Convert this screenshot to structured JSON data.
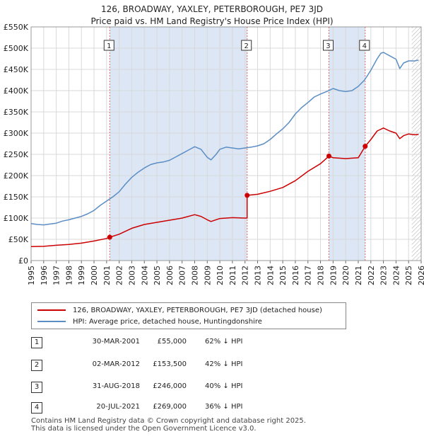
{
  "header": {
    "title_line1": "126, BROADWAY, YAXLEY, PETERBOROUGH, PE7 3JD",
    "title_line2": "Price paid vs. HM Land Registry's House Price Index (HPI)"
  },
  "legend": {
    "property_label": "126, BROADWAY, YAXLEY, PETERBOROUGH, PE7 3JD (detached house)",
    "hpi_label": "HPI: Average price, detached house, Huntingdonshire"
  },
  "transactions": [
    {
      "num": "1",
      "date": "30-MAR-2001",
      "price": "£55,000",
      "hpi": "62% ↓ HPI"
    },
    {
      "num": "2",
      "date": "02-MAR-2012",
      "price": "£153,500",
      "hpi": "42% ↓ HPI"
    },
    {
      "num": "3",
      "date": "31-AUG-2018",
      "price": "£246,000",
      "hpi": "40% ↓ HPI"
    },
    {
      "num": "4",
      "date": "20-JUL-2021",
      "price": "£269,000",
      "hpi": "36% ↓ HPI"
    }
  ],
  "footer": {
    "line1": "Contains HM Land Registry data © Crown copyright and database right 2025.",
    "line2": "This data is licensed under the Open Government Licence v3.0."
  },
  "colors": {
    "property": "#cc0000",
    "hpi": "#5b8ec4",
    "shade": "#dce6f5",
    "marker_line": "#dd6666",
    "grid": "#d9d9d9",
    "hatch": "#aaaaaa"
  },
  "chart_data": {
    "type": "line",
    "xlabel": "",
    "ylabel": "",
    "xlim": [
      1995,
      2026
    ],
    "ylim": [
      0,
      550000
    ],
    "x_ticks": [
      1995,
      1996,
      1997,
      1998,
      1999,
      2000,
      2001,
      2002,
      2003,
      2004,
      2005,
      2006,
      2007,
      2008,
      2009,
      2010,
      2011,
      2012,
      2013,
      2014,
      2015,
      2016,
      2017,
      2018,
      2019,
      2020,
      2021,
      2022,
      2023,
      2024,
      2025,
      2026
    ],
    "y_ticks": [
      {
        "value": 0,
        "label": "£0"
      },
      {
        "value": 50000,
        "label": "£50K"
      },
      {
        "value": 100000,
        "label": "£100K"
      },
      {
        "value": 150000,
        "label": "£150K"
      },
      {
        "value": 200000,
        "label": "£200K"
      },
      {
        "value": 250000,
        "label": "£250K"
      },
      {
        "value": 300000,
        "label": "£300K"
      },
      {
        "value": 350000,
        "label": "£350K"
      },
      {
        "value": 400000,
        "label": "£400K"
      },
      {
        "value": 450000,
        "label": "£450K"
      },
      {
        "value": 500000,
        "label": "£500K"
      },
      {
        "value": 550000,
        "label": "£550K"
      }
    ],
    "grid": true,
    "forecast_from": 2025.25,
    "shaded_ranges": [
      [
        2001.25,
        2012.17
      ],
      [
        2018.67,
        2021.55
      ]
    ],
    "sales": [
      {
        "label": "1",
        "x": 2001.25,
        "y": 55000
      },
      {
        "label": "2",
        "x": 2012.17,
        "y": 153500
      },
      {
        "label": "3",
        "x": 2018.67,
        "y": 246000
      },
      {
        "label": "4",
        "x": 2021.55,
        "y": 269000
      }
    ],
    "series": [
      {
        "name": "HPI: Average price, detached house, Huntingdonshire",
        "color": "#5b8ec4",
        "points": [
          [
            1995.0,
            87000
          ],
          [
            1995.5,
            85000
          ],
          [
            1996.0,
            84000
          ],
          [
            1996.5,
            86000
          ],
          [
            1997.0,
            88000
          ],
          [
            1997.5,
            93000
          ],
          [
            1998.0,
            96000
          ],
          [
            1998.5,
            100000
          ],
          [
            1999.0,
            104000
          ],
          [
            1999.5,
            110000
          ],
          [
            2000.0,
            118000
          ],
          [
            2000.5,
            130000
          ],
          [
            2001.0,
            140000
          ],
          [
            2001.5,
            150000
          ],
          [
            2002.0,
            162000
          ],
          [
            2002.5,
            180000
          ],
          [
            2003.0,
            196000
          ],
          [
            2003.5,
            208000
          ],
          [
            2004.0,
            218000
          ],
          [
            2004.5,
            226000
          ],
          [
            2005.0,
            230000
          ],
          [
            2005.5,
            232000
          ],
          [
            2006.0,
            236000
          ],
          [
            2006.5,
            244000
          ],
          [
            2007.0,
            252000
          ],
          [
            2007.5,
            260000
          ],
          [
            2008.0,
            268000
          ],
          [
            2008.5,
            262000
          ],
          [
            2009.0,
            243000
          ],
          [
            2009.3,
            237000
          ],
          [
            2009.7,
            250000
          ],
          [
            2010.0,
            262000
          ],
          [
            2010.5,
            267000
          ],
          [
            2011.0,
            265000
          ],
          [
            2011.5,
            263000
          ],
          [
            2012.0,
            265000
          ],
          [
            2012.5,
            267000
          ],
          [
            2013.0,
            270000
          ],
          [
            2013.5,
            275000
          ],
          [
            2014.0,
            285000
          ],
          [
            2014.5,
            298000
          ],
          [
            2015.0,
            310000
          ],
          [
            2015.5,
            325000
          ],
          [
            2016.0,
            345000
          ],
          [
            2016.5,
            360000
          ],
          [
            2017.0,
            372000
          ],
          [
            2017.5,
            385000
          ],
          [
            2018.0,
            392000
          ],
          [
            2018.5,
            398000
          ],
          [
            2019.0,
            405000
          ],
          [
            2019.5,
            400000
          ],
          [
            2020.0,
            398000
          ],
          [
            2020.5,
            400000
          ],
          [
            2021.0,
            410000
          ],
          [
            2021.5,
            425000
          ],
          [
            2022.0,
            448000
          ],
          [
            2022.5,
            475000
          ],
          [
            2022.8,
            488000
          ],
          [
            2023.0,
            490000
          ],
          [
            2023.5,
            482000
          ],
          [
            2024.0,
            474000
          ],
          [
            2024.3,
            452000
          ],
          [
            2024.6,
            465000
          ],
          [
            2025.0,
            470000
          ],
          [
            2025.5,
            470000
          ],
          [
            2025.8,
            472000
          ]
        ]
      },
      {
        "name": "126, BROADWAY, YAXLEY, PETERBOROUGH, PE7 3JD (detached house)",
        "color": "#cc0000",
        "points": [
          [
            1995.0,
            33000
          ],
          [
            1996.0,
            33500
          ],
          [
            1997.0,
            36000
          ],
          [
            1998.0,
            38000
          ],
          [
            1999.0,
            41000
          ],
          [
            2000.0,
            46000
          ],
          [
            2001.0,
            52000
          ],
          [
            2001.25,
            55000
          ],
          [
            2002.0,
            62000
          ],
          [
            2003.0,
            76000
          ],
          [
            2004.0,
            85000
          ],
          [
            2005.0,
            90000
          ],
          [
            2006.0,
            95000
          ],
          [
            2007.0,
            100000
          ],
          [
            2008.0,
            108000
          ],
          [
            2008.5,
            104000
          ],
          [
            2009.0,
            96000
          ],
          [
            2009.3,
            92000
          ],
          [
            2010.0,
            99000
          ],
          [
            2011.0,
            101000
          ],
          [
            2012.0,
            100000
          ],
          [
            2012.17,
            100000
          ],
          [
            2012.17,
            153500
          ],
          [
            2013.0,
            156000
          ],
          [
            2014.0,
            163000
          ],
          [
            2015.0,
            172000
          ],
          [
            2016.0,
            188000
          ],
          [
            2017.0,
            210000
          ],
          [
            2018.0,
            228000
          ],
          [
            2018.67,
            246000
          ],
          [
            2019.0,
            242000
          ],
          [
            2020.0,
            240000
          ],
          [
            2021.0,
            242000
          ],
          [
            2021.55,
            269000
          ],
          [
            2022.0,
            285000
          ],
          [
            2022.5,
            305000
          ],
          [
            2023.0,
            312000
          ],
          [
            2023.5,
            305000
          ],
          [
            2024.0,
            300000
          ],
          [
            2024.3,
            287000
          ],
          [
            2024.6,
            294000
          ],
          [
            2025.0,
            298000
          ],
          [
            2025.5,
            296000
          ],
          [
            2025.8,
            297000
          ]
        ]
      }
    ]
  }
}
